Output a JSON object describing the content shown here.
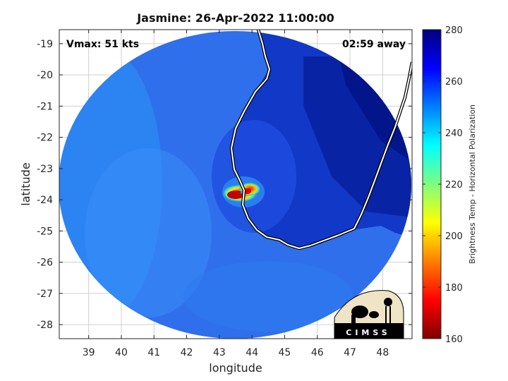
{
  "title": "Jasmine: 26-Apr-2022 11:00:00",
  "vmax_text": "Vmax: 51 kts",
  "time_text": "02:59 away",
  "xlabel": "longitude",
  "ylabel": "latitude",
  "colorbar_label": "Brightness Temp - Horizontal Polarization",
  "logo_text": "CIMSS",
  "chart_data": {
    "type": "heatmap",
    "xlim": [
      38.1,
      48.9
    ],
    "ylim": [
      -28.45,
      -18.55
    ],
    "x_ticks": [
      39,
      40,
      41,
      42,
      43,
      44,
      45,
      46,
      47,
      48
    ],
    "y_ticks": [
      -19,
      -20,
      -21,
      -22,
      -23,
      -24,
      -25,
      -26,
      -27,
      -28
    ],
    "grid": true,
    "colorbar": {
      "min": 160,
      "max": 280,
      "ticks": [
        280,
        260,
        240,
        220,
        200,
        180,
        160
      ]
    },
    "center": [
      43.4,
      -24.0
    ]
  },
  "colors": {
    "cold_top": "#002a9a",
    "warm_sea": "#2f74f0",
    "high": "#001a7a",
    "core_red": "#d80000"
  }
}
